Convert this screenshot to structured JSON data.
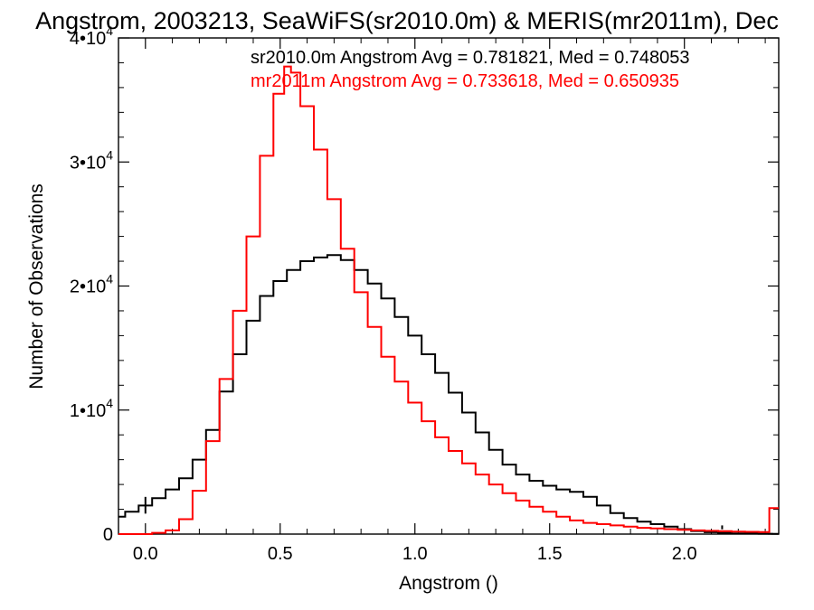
{
  "chart_data": {
    "type": "line",
    "title": "Angstrom, 2003213, SeaWiFS(sr2010.0m) & MERIS(mr2011m), Dec",
    "xlabel": "Angstrom ()",
    "ylabel": "Number of Observations",
    "xlim": [
      -0.1,
      2.35
    ],
    "ylim": [
      0,
      40000
    ],
    "x_ticks": [
      0.0,
      0.5,
      1.0,
      1.5,
      2.0
    ],
    "x_tick_labels": [
      "0.0",
      "0.5",
      "1.0",
      "1.5",
      "2.0"
    ],
    "y_ticks": [
      0,
      10000,
      20000,
      30000,
      40000
    ],
    "y_tick_labels": [
      {
        "mantissa": "0",
        "exponent": ""
      },
      {
        "mantissa": "1•10",
        "exponent": "4"
      },
      {
        "mantissa": "2•10",
        "exponent": "4"
      },
      {
        "mantissa": "3•10",
        "exponent": "4"
      },
      {
        "mantissa": "4•10",
        "exponent": "4"
      }
    ],
    "grid": false,
    "legend_position": "top-right",
    "series": [
      {
        "name": "sr2010.0m Angstrom Avg = 0.781821, Med = 0.748053",
        "color": "#000000",
        "points": [
          [
            -0.1,
            1400
          ],
          [
            -0.05,
            1800
          ],
          [
            0.0,
            2300
          ],
          [
            0.05,
            2900
          ],
          [
            0.1,
            3600
          ],
          [
            0.15,
            4500
          ],
          [
            0.2,
            6000
          ],
          [
            0.25,
            8400
          ],
          [
            0.3,
            11500
          ],
          [
            0.35,
            14500
          ],
          [
            0.4,
            17200
          ],
          [
            0.45,
            19200
          ],
          [
            0.5,
            20400
          ],
          [
            0.55,
            21300
          ],
          [
            0.6,
            22000
          ],
          [
            0.65,
            22300
          ],
          [
            0.7,
            22500
          ],
          [
            0.75,
            22100
          ],
          [
            0.8,
            21300
          ],
          [
            0.85,
            20200
          ],
          [
            0.9,
            19000
          ],
          [
            0.95,
            17500
          ],
          [
            1.0,
            16000
          ],
          [
            1.05,
            14500
          ],
          [
            1.1,
            13000
          ],
          [
            1.15,
            11400
          ],
          [
            1.2,
            9800
          ],
          [
            1.25,
            8200
          ],
          [
            1.3,
            6800
          ],
          [
            1.35,
            5600
          ],
          [
            1.4,
            4800
          ],
          [
            1.45,
            4300
          ],
          [
            1.5,
            3900
          ],
          [
            1.55,
            3600
          ],
          [
            1.6,
            3400
          ],
          [
            1.65,
            3000
          ],
          [
            1.7,
            2300
          ],
          [
            1.75,
            1700
          ],
          [
            1.8,
            1300
          ],
          [
            1.85,
            1000
          ],
          [
            1.9,
            800
          ],
          [
            1.95,
            600
          ],
          [
            2.0,
            400
          ],
          [
            2.05,
            250
          ],
          [
            2.1,
            150
          ],
          [
            2.15,
            100
          ],
          [
            2.2,
            60
          ],
          [
            2.25,
            40
          ],
          [
            2.3,
            30
          ],
          [
            2.35,
            20
          ]
        ],
        "spikes": [
          [
            0.0,
            3000
          ],
          [
            2.14,
            700
          ]
        ]
      },
      {
        "name": "mr2011m Angstrom Avg = 0.733618, Med = 0.650935",
        "color": "#ff0000",
        "points": [
          [
            -0.1,
            0
          ],
          [
            0.0,
            0
          ],
          [
            0.05,
            100
          ],
          [
            0.1,
            300
          ],
          [
            0.15,
            1200
          ],
          [
            0.2,
            3500
          ],
          [
            0.25,
            7500
          ],
          [
            0.3,
            12500
          ],
          [
            0.35,
            18000
          ],
          [
            0.4,
            24000
          ],
          [
            0.45,
            30500
          ],
          [
            0.5,
            35500
          ],
          [
            0.53,
            37700
          ],
          [
            0.55,
            37200
          ],
          [
            0.6,
            34500
          ],
          [
            0.65,
            31000
          ],
          [
            0.7,
            27000
          ],
          [
            0.75,
            23000
          ],
          [
            0.8,
            19500
          ],
          [
            0.85,
            16700
          ],
          [
            0.9,
            14300
          ],
          [
            0.95,
            12300
          ],
          [
            1.0,
            10600
          ],
          [
            1.05,
            9100
          ],
          [
            1.1,
            7800
          ],
          [
            1.15,
            6700
          ],
          [
            1.2,
            5700
          ],
          [
            1.25,
            4800
          ],
          [
            1.3,
            4000
          ],
          [
            1.35,
            3300
          ],
          [
            1.4,
            2700
          ],
          [
            1.45,
            2200
          ],
          [
            1.5,
            1800
          ],
          [
            1.55,
            1400
          ],
          [
            1.6,
            1100
          ],
          [
            1.65,
            900
          ],
          [
            1.7,
            800
          ],
          [
            1.75,
            700
          ],
          [
            1.8,
            600
          ],
          [
            1.85,
            500
          ],
          [
            1.9,
            450
          ],
          [
            1.95,
            400
          ],
          [
            2.0,
            350
          ],
          [
            2.05,
            300
          ],
          [
            2.1,
            260
          ],
          [
            2.15,
            230
          ],
          [
            2.2,
            200
          ],
          [
            2.25,
            180
          ],
          [
            2.3,
            170
          ],
          [
            2.33,
            2100
          ],
          [
            2.35,
            2100
          ]
        ],
        "spikes": []
      }
    ]
  }
}
